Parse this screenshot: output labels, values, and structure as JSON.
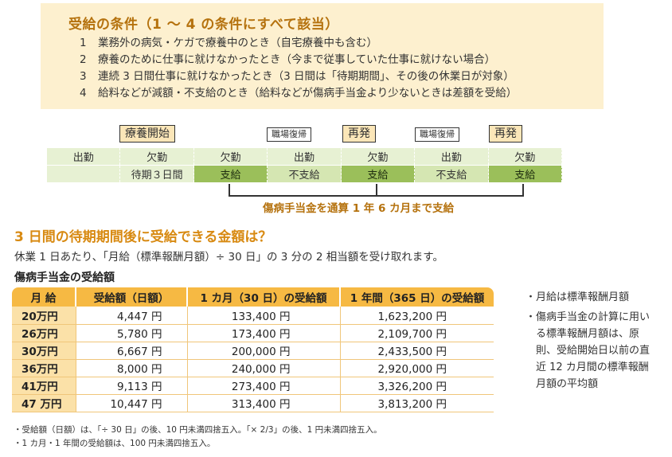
{
  "conditions": {
    "title": "受給の条件（1 〜 4 の条件にすべて該当）",
    "items": [
      {
        "num": "1",
        "text": "業務外の病気・ケガで療養中のとき（自宅療養中も含む）"
      },
      {
        "num": "2",
        "text": "療養のために仕事に就けなかったとき（今まで従事していた仕事に就けない場合）"
      },
      {
        "num": "3",
        "text": "連続 3 日間仕事に就けなかったとき（3 日間は「待期期間」、その後の休業日が対象）"
      },
      {
        "num": "4",
        "text": "給料などが減額・不支給のとき（給料などが傷病手当金より少ないときは差額を受給）"
      }
    ]
  },
  "timeline": {
    "tags": {
      "start": "療養開始",
      "return1": "職場復帰",
      "relapse1": "再発",
      "return2": "職場復帰",
      "relapse2": "再発"
    },
    "work_row": [
      "出勤",
      "欠勤",
      "欠勤",
      "出勤",
      "欠勤",
      "出勤",
      "欠勤"
    ],
    "pay_row": [
      "",
      "待期３日間",
      "支給",
      "不支給",
      "支給",
      "不支給",
      "支給"
    ],
    "continuous_label": "傷病手当金を通算 1 年 6 カ月まで支給"
  },
  "section": {
    "title": "3 日間の待期期間後に受給できる金額は？",
    "description": "休業 1 日あたり、「月給（標準報酬月額）÷ 30 日」の 3 分の 2 相当額を受け取れます。",
    "table_title": "傷病手当金の受給額"
  },
  "table": {
    "headers": [
      "月 給",
      "受給額（日額）",
      "1 カ月（30 日）の受給額",
      "1 年間（365 日）の受給額"
    ],
    "rows": [
      [
        "20万円",
        "4,447 円",
        "133,400 円",
        "1,623,200 円"
      ],
      [
        "26万円",
        "5,780 円",
        "173,400 円",
        "2,109,700 円"
      ],
      [
        "30万円",
        "6,667 円",
        "200,000 円",
        "2,433,500 円"
      ],
      [
        "36万円",
        "8,000 円",
        "240,000 円",
        "2,920,000 円"
      ],
      [
        "41万円",
        "9,113 円",
        "273,400 円",
        "3,326,200 円"
      ],
      [
        "47 万円",
        "10,447 円",
        "313,400 円",
        "3,813,200 円"
      ]
    ]
  },
  "side_notes": [
    {
      "bullet": "・",
      "text": "月給は標準報酬月額"
    },
    {
      "bullet": "・",
      "text": "傷病手当金の計算に用いる標準報酬月額は、原則、受給開始日以前の直近 12 カ月間の標準報酬月額の平均額"
    }
  ],
  "footnotes": [
    "・受給額（日額）は、「÷ 30 日」の後、10 円未満四捨五入。「× 2/3」の後、1 円未満四捨五入。",
    "・1 カ月・1 年間の受給額は、100 円未満四捨五入。"
  ],
  "colors": {
    "cond_bg": "#fdf0cf",
    "title_brown": "#b5720e",
    "accent_orange": "#d88a12",
    "header_orange": "#f6b943",
    "paid_green": "#9bbf5a",
    "light_green": "#e7f1d3"
  }
}
